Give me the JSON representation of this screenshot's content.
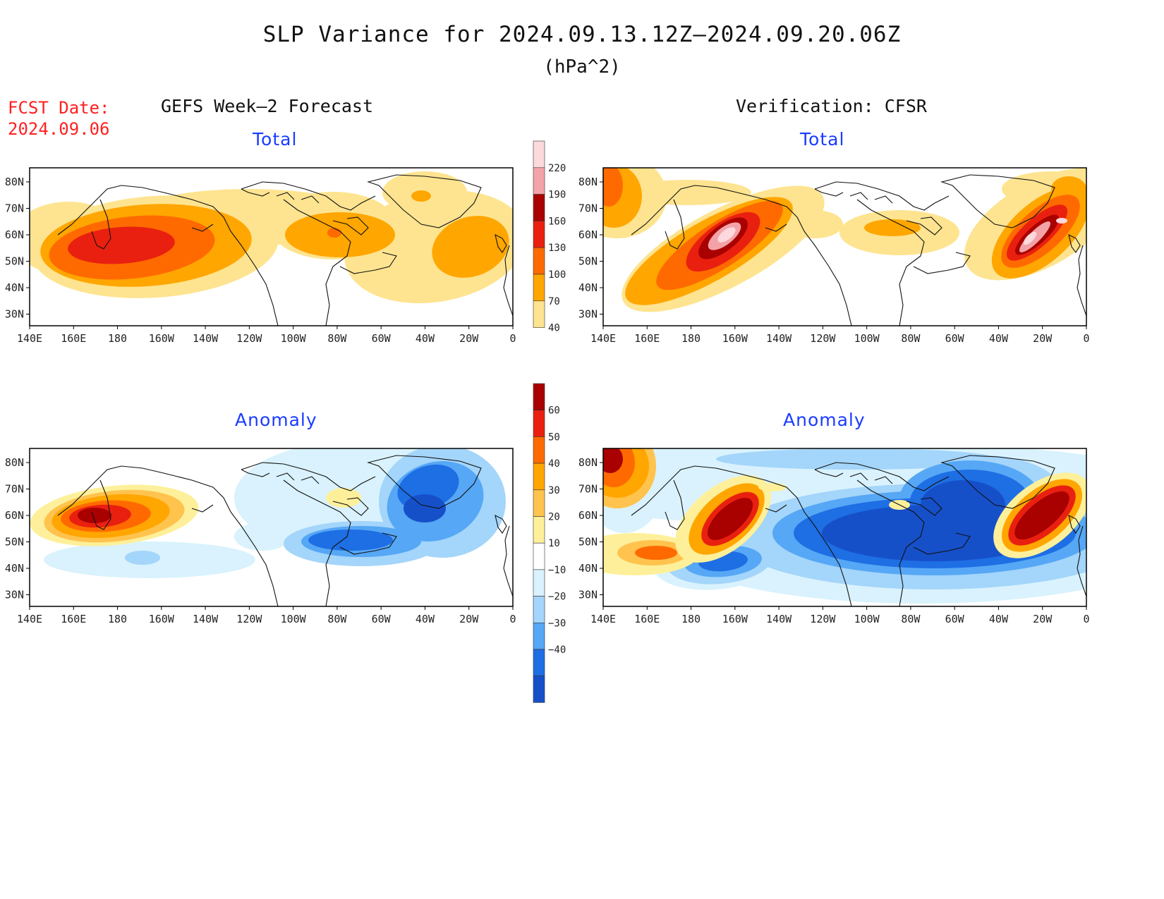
{
  "title": "SLP Variance for 2024.09.13.12Z–2024.09.20.06Z",
  "units": "(hPa^2)",
  "fcst_label": "FCST Date:",
  "fcst_date": "2024.09.06",
  "left_header": "GEFS Week–2 Forecast",
  "right_header": "Verification: CFSR",
  "total_label": "Total",
  "anomaly_label": "Anomaly",
  "x_ticks": [
    "140E",
    "160E",
    "180",
    "160W",
    "140W",
    "120W",
    "100W",
    "80W",
    "60W",
    "40W",
    "20W",
    "0"
  ],
  "y_ticks": [
    "80N",
    "70N",
    "60N",
    "50N",
    "40N",
    "30N"
  ],
  "colorbar_total": {
    "levels": [
      "40",
      "70",
      "100",
      "130",
      "160",
      "190",
      "220"
    ],
    "colors": [
      "#fee490",
      "#ffa600",
      "#ff6a00",
      "#e92010",
      "#a90000",
      "#f3a3a8",
      "#fbd9dc"
    ]
  },
  "colorbar_anomaly": {
    "levels": [
      "60",
      "50",
      "40",
      "30",
      "20",
      "10",
      "−10",
      "−20",
      "−30",
      "−40"
    ],
    "colors": [
      "#a90000",
      "#e92010",
      "#ff6a00",
      "#ffa600",
      "#ffc34e",
      "#fef09a",
      "#ffffff",
      "#d9f2fd",
      "#a4d5fa",
      "#56a7f5",
      "#1e6ee4",
      "#1650c9"
    ]
  }
}
